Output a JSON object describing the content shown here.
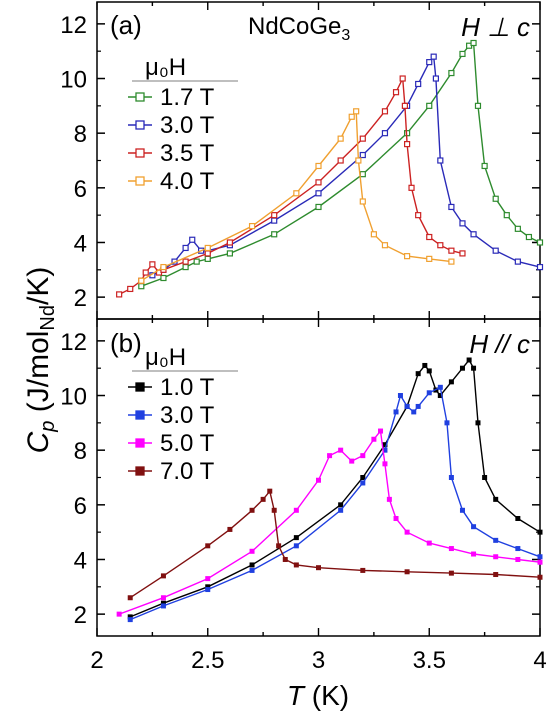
{
  "chart_data": [
    {
      "type": "line",
      "panel_label": "(a)",
      "compound": "NdCoGe",
      "compound_sub": "3",
      "field_orientation": "H ⊥ c",
      "legend_title": "μ₀H",
      "legend_placement": "left",
      "xlim": [
        2,
        4
      ],
      "ylim": [
        1.2,
        12.8
      ],
      "yticks": [
        "2",
        "4",
        "6",
        "8",
        "10",
        "12"
      ],
      "marker": "open",
      "series": [
        {
          "name": "1.7 T",
          "color": "#2e8b2e",
          "x": [
            2.2,
            2.3,
            2.4,
            2.45,
            2.5,
            2.6,
            2.8,
            3.0,
            3.2,
            3.4,
            3.5,
            3.6,
            3.65,
            3.68,
            3.7,
            3.72,
            3.75,
            3.8,
            3.85,
            3.9,
            3.95,
            4.0
          ],
          "y": [
            2.4,
            2.7,
            3.1,
            3.3,
            3.4,
            3.6,
            4.3,
            5.3,
            6.5,
            8.0,
            9.0,
            10.2,
            10.9,
            11.2,
            11.3,
            9.0,
            6.8,
            5.6,
            5.0,
            4.5,
            4.2,
            4.0
          ]
        },
        {
          "name": "3.0 T",
          "color": "#2a2ab8",
          "x": [
            2.25,
            2.3,
            2.35,
            2.4,
            2.43,
            2.47,
            2.5,
            2.6,
            2.8,
            3.0,
            3.2,
            3.3,
            3.4,
            3.45,
            3.5,
            3.52,
            3.53,
            3.55,
            3.6,
            3.65,
            3.7,
            3.8,
            3.9,
            4.0
          ],
          "y": [
            2.8,
            3.0,
            3.3,
            3.8,
            4.1,
            3.7,
            3.7,
            3.9,
            4.8,
            5.8,
            7.2,
            8.0,
            9.0,
            9.8,
            10.6,
            10.8,
            10.0,
            7.0,
            5.3,
            4.7,
            4.3,
            3.7,
            3.3,
            3.1
          ]
        },
        {
          "name": "3.5 T",
          "color": "#cc2222",
          "x": [
            2.1,
            2.15,
            2.2,
            2.22,
            2.25,
            2.28,
            2.3,
            2.4,
            2.5,
            2.6,
            2.8,
            3.0,
            3.1,
            3.2,
            3.3,
            3.35,
            3.38,
            3.39,
            3.4,
            3.42,
            3.45,
            3.5,
            3.55,
            3.6,
            3.65
          ],
          "y": [
            2.1,
            2.3,
            2.6,
            2.9,
            3.2,
            2.9,
            3.0,
            3.3,
            3.6,
            4.0,
            5.0,
            6.2,
            7.0,
            7.8,
            8.8,
            9.5,
            10.0,
            9.0,
            7.6,
            6.0,
            5.0,
            4.2,
            3.9,
            3.7,
            3.6
          ]
        },
        {
          "name": "4.0 T",
          "color": "#f0a030",
          "x": [
            2.2,
            2.3,
            2.5,
            2.7,
            2.9,
            3.0,
            3.1,
            3.15,
            3.17,
            3.18,
            3.2,
            3.25,
            3.3,
            3.4,
            3.5,
            3.6
          ],
          "y": [
            2.6,
            3.1,
            3.8,
            4.6,
            5.8,
            6.8,
            7.8,
            8.6,
            8.8,
            7.0,
            5.5,
            4.3,
            3.9,
            3.5,
            3.4,
            3.3
          ]
        }
      ]
    },
    {
      "type": "line",
      "panel_label": "(b)",
      "field_orientation": "H // c",
      "legend_title": "μ₀H",
      "legend_placement": "left",
      "xlim": [
        2,
        4
      ],
      "ylim": [
        1.2,
        12.8
      ],
      "yticks": [
        "2",
        "4",
        "6",
        "8",
        "10",
        "12"
      ],
      "xticks": [
        "2",
        "2.5",
        "3",
        "3.5",
        "4"
      ],
      "xlabel": "T (K)",
      "marker": "filled",
      "series": [
        {
          "name": "1.0 T",
          "color": "#000000",
          "x": [
            2.15,
            2.3,
            2.5,
            2.7,
            2.9,
            3.1,
            3.2,
            3.3,
            3.4,
            3.45,
            3.48,
            3.5,
            3.53,
            3.55,
            3.6,
            3.65,
            3.68,
            3.7,
            3.72,
            3.75,
            3.8,
            3.9,
            4.0
          ],
          "y": [
            1.9,
            2.4,
            3.0,
            3.8,
            4.8,
            6.0,
            7.0,
            8.2,
            9.6,
            10.8,
            11.1,
            10.9,
            10.2,
            10.0,
            10.5,
            11.0,
            11.3,
            11.0,
            9.0,
            7.0,
            6.2,
            5.5,
            5.0
          ]
        },
        {
          "name": "3.0 T",
          "color": "#2040e0",
          "x": [
            2.15,
            2.3,
            2.5,
            2.7,
            2.9,
            3.1,
            3.2,
            3.3,
            3.35,
            3.37,
            3.4,
            3.43,
            3.45,
            3.5,
            3.55,
            3.58,
            3.6,
            3.65,
            3.7,
            3.8,
            3.9,
            4.0
          ],
          "y": [
            1.8,
            2.3,
            2.9,
            3.6,
            4.5,
            5.8,
            6.8,
            8.0,
            9.4,
            10.0,
            9.6,
            9.4,
            9.6,
            10.1,
            10.3,
            9.0,
            7.0,
            5.8,
            5.2,
            4.7,
            4.4,
            4.1
          ]
        },
        {
          "name": "5.0 T",
          "color": "#ff00ff",
          "x": [
            2.1,
            2.3,
            2.5,
            2.7,
            2.9,
            3.0,
            3.05,
            3.1,
            3.15,
            3.2,
            3.25,
            3.28,
            3.3,
            3.32,
            3.35,
            3.4,
            3.5,
            3.6,
            3.7,
            3.8,
            3.9,
            4.0
          ],
          "y": [
            2.0,
            2.6,
            3.3,
            4.3,
            5.8,
            6.9,
            7.8,
            8.0,
            7.6,
            7.8,
            8.4,
            8.7,
            7.5,
            6.2,
            5.5,
            5.0,
            4.6,
            4.4,
            4.2,
            4.1,
            4.0,
            3.9
          ]
        },
        {
          "name": "7.0 T",
          "color": "#801010",
          "x": [
            2.15,
            2.3,
            2.5,
            2.6,
            2.7,
            2.75,
            2.78,
            2.8,
            2.82,
            2.85,
            2.9,
            3.0,
            3.2,
            3.4,
            3.6,
            3.8,
            4.0
          ],
          "y": [
            2.6,
            3.4,
            4.5,
            5.1,
            5.8,
            6.2,
            6.5,
            5.8,
            4.5,
            4.0,
            3.8,
            3.7,
            3.6,
            3.55,
            3.5,
            3.45,
            3.35
          ]
        }
      ]
    }
  ],
  "ylabel_main": "C",
  "ylabel_sub": "p",
  "ylabel_rest": " (J/mol",
  "ylabel_sub2": "Nd",
  "ylabel_end": "/K)"
}
